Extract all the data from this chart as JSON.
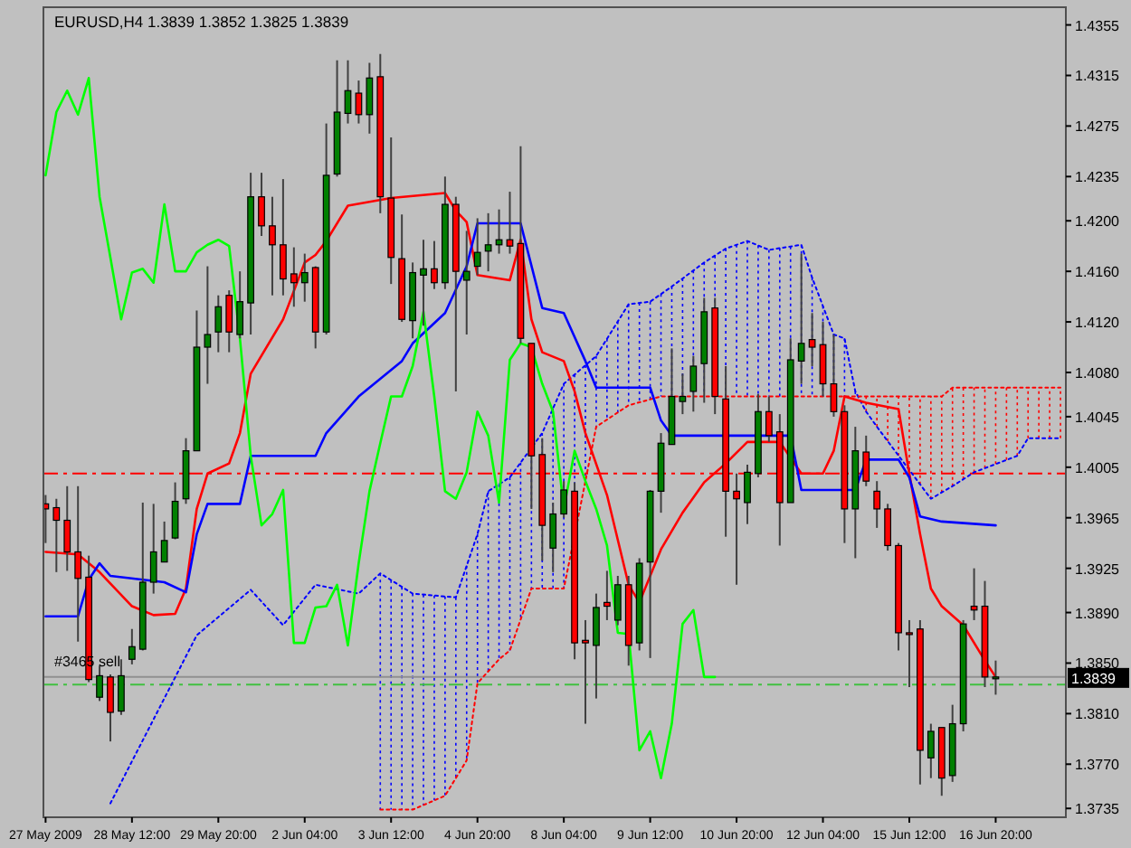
{
  "chart_data": {
    "type": "candlestick",
    "title": "EURUSD,H4  1.3839 1.3852 1.3825 1.3839",
    "categories": [
      "27 May 2009",
      null,
      null,
      null,
      null,
      null,
      null,
      null,
      "28 May 12:00",
      null,
      null,
      null,
      null,
      null,
      null,
      null,
      "29 May 20:00",
      null,
      null,
      null,
      null,
      null,
      null,
      null,
      "2 Jun 04:00",
      null,
      null,
      null,
      null,
      null,
      null,
      null,
      "3 Jun 12:00",
      null,
      null,
      null,
      null,
      null,
      null,
      null,
      "4 Jun 20:00",
      null,
      null,
      null,
      null,
      null,
      null,
      null,
      "8 Jun 04:00",
      null,
      null,
      null,
      null,
      null,
      null,
      null,
      "9 Jun 12:00",
      null,
      null,
      null,
      null,
      null,
      null,
      null,
      "10 Jun 20:00",
      null,
      null,
      null,
      null,
      null,
      null,
      null,
      "12 Jun 04:00",
      null,
      null,
      null,
      null,
      null,
      null,
      null,
      "15 Jun 12:00",
      null,
      null,
      null,
      null,
      null,
      null,
      null,
      "16 Jun 20:00",
      null,
      null,
      null,
      null,
      null,
      null
    ],
    "ohlc": [
      [
        1.3976,
        1.3983,
        1.3945,
        1.3972
      ],
      [
        1.3973,
        1.398,
        1.3922,
        1.3963
      ],
      [
        1.3963,
        1.399,
        1.3923,
        1.3938
      ],
      [
        1.3938,
        1.399,
        1.3867,
        1.3917
      ],
      [
        1.3918,
        1.3935,
        1.3835,
        1.3837
      ],
      [
        1.3823,
        1.3848,
        1.382,
        1.384
      ],
      [
        1.3839,
        1.3841,
        1.3788,
        1.3811
      ],
      [
        1.3812,
        1.3853,
        1.3809,
        1.384
      ],
      [
        1.3853,
        1.3877,
        1.3849,
        1.3863
      ],
      [
        1.3861,
        1.3977,
        1.386,
        1.3914
      ],
      [
        1.3914,
        1.3976,
        1.3905,
        1.3938
      ],
      [
        1.393,
        1.3962,
        1.393,
        1.3947
      ],
      [
        1.3949,
        1.3993,
        1.3948,
        1.3978
      ],
      [
        1.398,
        1.4028,
        1.3976,
        1.4018
      ],
      [
        1.4018,
        1.4129,
        1.4018,
        1.41
      ],
      [
        1.41,
        1.4164,
        1.4071,
        1.411
      ],
      [
        1.4112,
        1.4141,
        1.4096,
        1.4132
      ],
      [
        1.4141,
        1.4145,
        1.4096,
        1.4112
      ],
      [
        1.411,
        1.416,
        1.4107,
        1.4136
      ],
      [
        1.4135,
        1.4238,
        1.411,
        1.4219
      ],
      [
        1.4219,
        1.4238,
        1.4188,
        1.4196
      ],
      [
        1.4196,
        1.4219,
        1.4141,
        1.4181
      ],
      [
        1.4181,
        1.4233,
        1.4141,
        1.4154
      ],
      [
        1.4158,
        1.4179,
        1.4132,
        1.4151
      ],
      [
        1.4151,
        1.4174,
        1.4136,
        1.4159
      ],
      [
        1.4163,
        1.4164,
        1.4099,
        1.4112
      ],
      [
        1.4112,
        1.4277,
        1.411,
        1.4236
      ],
      [
        1.4237,
        1.4327,
        1.4235,
        1.4286
      ],
      [
        1.4285,
        1.4327,
        1.4277,
        1.4303
      ],
      [
        1.4301,
        1.4311,
        1.4277,
        1.4284
      ],
      [
        1.4284,
        1.4325,
        1.4269,
        1.4313
      ],
      [
        1.4314,
        1.4332,
        1.4206,
        1.4219
      ],
      [
        1.4218,
        1.4266,
        1.415,
        1.4171
      ],
      [
        1.417,
        1.4205,
        1.412,
        1.4122
      ],
      [
        1.4121,
        1.4167,
        1.4107,
        1.4159
      ],
      [
        1.4157,
        1.4185,
        1.4117,
        1.4162
      ],
      [
        1.4162,
        1.4184,
        1.4146,
        1.4151
      ],
      [
        1.4151,
        1.4235,
        1.4146,
        1.4213
      ],
      [
        1.4213,
        1.4219,
        1.4065,
        1.416
      ],
      [
        1.4153,
        1.4192,
        1.411,
        1.416
      ],
      [
        1.4164,
        1.4202,
        1.4157,
        1.4175
      ],
      [
        1.4176,
        1.4206,
        1.416,
        1.4181
      ],
      [
        1.4181,
        1.4209,
        1.4174,
        1.4185
      ],
      [
        1.4185,
        1.4223,
        1.4174,
        1.418
      ],
      [
        1.4182,
        1.4259,
        1.4103,
        1.4107
      ],
      [
        1.4103,
        1.4103,
        1.3972,
        1.4014
      ],
      [
        1.4015,
        1.4028,
        1.3931,
        1.3959
      ],
      [
        1.3941,
        1.3977,
        1.3922,
        1.3968
      ],
      [
        1.3968,
        1.3994,
        1.3965,
        1.3987
      ],
      [
        1.3986,
        1.3993,
        1.3853,
        1.3866
      ],
      [
        1.3868,
        1.3884,
        1.3802,
        1.3866
      ],
      [
        1.3864,
        1.3905,
        1.3822,
        1.3894
      ],
      [
        1.3898,
        1.3923,
        1.3884,
        1.3895
      ],
      [
        1.3884,
        1.3919,
        1.388,
        1.3912
      ],
      [
        1.3912,
        1.3919,
        1.3848,
        1.3864
      ],
      [
        1.3866,
        1.3933,
        1.386,
        1.3929
      ],
      [
        1.393,
        1.3987,
        1.3854,
        1.3986
      ],
      [
        1.3986,
        1.4032,
        1.3969,
        1.4024
      ],
      [
        1.4023,
        1.4099,
        1.4023,
        1.4061
      ],
      [
        1.4057,
        1.4079,
        1.4047,
        1.4061
      ],
      [
        1.4065,
        1.4093,
        1.4049,
        1.4085
      ],
      [
        1.4087,
        1.4139,
        1.4056,
        1.4128
      ],
      [
        1.4131,
        1.4139,
        1.4047,
        1.4061
      ],
      [
        1.4059,
        1.4085,
        1.395,
        1.3986
      ],
      [
        1.3986,
        1.4,
        1.3912,
        1.398
      ],
      [
        1.3977,
        1.4007,
        1.396,
        1.4001
      ],
      [
        1.4,
        1.4063,
        1.3997,
        1.4049
      ],
      [
        1.4049,
        1.4061,
        1.4025,
        1.403
      ],
      [
        1.4033,
        1.4047,
        1.3943,
        1.3977
      ],
      [
        1.3977,
        1.4107,
        1.3977,
        1.409
      ],
      [
        1.4089,
        1.4174,
        1.4071,
        1.4103
      ],
      [
        1.4106,
        1.4127,
        1.4085,
        1.41
      ],
      [
        1.4102,
        1.412,
        1.4061,
        1.4071
      ],
      [
        1.4071,
        1.411,
        1.4045,
        1.4049
      ],
      [
        1.4049,
        1.4054,
        1.3945,
        1.3972
      ],
      [
        1.3972,
        1.4037,
        1.3933,
        1.4018
      ],
      [
        1.4017,
        1.403,
        1.399,
        1.3994
      ],
      [
        1.3986,
        1.3994,
        1.3957,
        1.3972
      ],
      [
        1.3972,
        1.3976,
        1.3939,
        1.3943
      ],
      [
        1.3943,
        1.3945,
        1.386,
        1.3874
      ],
      [
        1.3874,
        1.3884,
        1.3831,
        1.3873
      ],
      [
        1.3877,
        1.3884,
        1.3754,
        1.3781
      ],
      [
        1.3775,
        1.3802,
        1.3759,
        1.3796
      ],
      [
        1.3799,
        1.3799,
        1.3745,
        1.3759
      ],
      [
        1.3761,
        1.3817,
        1.3756,
        1.3802
      ],
      [
        1.3802,
        1.3884,
        1.3796,
        1.3881
      ],
      [
        1.3895,
        1.3925,
        1.3884,
        1.3892
      ],
      [
        1.3895,
        1.3915,
        1.3831,
        1.3839
      ],
      [
        1.3839,
        1.3852,
        1.3825,
        1.3839
      ],
      null,
      null,
      null,
      null,
      null,
      null
    ],
    "colors": [
      "#ff0000",
      "#ff0000",
      "#ff0000",
      "#ff0000",
      "#ff0000",
      "#008000",
      "#ff0000",
      "#008000",
      "#008000",
      "#008000",
      "#008000",
      "#008000",
      "#008000",
      "#008000",
      "#008000",
      "#008000",
      "#008000",
      "#ff0000",
      "#008000",
      "#008000",
      "#ff0000",
      "#ff0000",
      "#ff0000",
      "#ff0000",
      "#008000",
      "#ff0000",
      "#008000",
      "#008000",
      "#008000",
      "#ff0000",
      "#008000",
      "#ff0000",
      "#ff0000",
      "#ff0000",
      "#008000",
      "#008000",
      "#ff0000",
      "#008000",
      "#ff0000",
      "#008000",
      "#008000",
      "#008000",
      "#008000",
      "#ff0000",
      "#ff0000",
      "#ff0000",
      "#ff0000",
      "#008000",
      "#008000",
      "#ff0000",
      "#ff0000",
      "#008000",
      "#ff0000",
      "#008000",
      "#ff0000",
      "#008000",
      "#008000",
      "#008000",
      "#008000",
      "#008000",
      "#008000",
      "#008000",
      "#ff0000",
      "#ff0000",
      "#ff0000",
      "#008000",
      "#008000",
      "#ff0000",
      "#ff0000",
      "#008000",
      "#008000",
      "#ff0000",
      "#ff0000",
      "#ff0000",
      "#ff0000",
      "#008000",
      "#ff0000",
      "#ff0000",
      "#ff0000",
      "#ff0000",
      "#ff0000",
      "#ff0000",
      "#008000",
      "#ff0000",
      "#008000",
      "#008000",
      "#ff0000",
      "#ff0000",
      "#008000",
      null,
      null,
      null,
      null,
      null,
      null
    ],
    "series": [
      {
        "type": "line",
        "color": "#0000ff",
        "line_style": "dotted",
        "values": [
          null,
          null,
          null,
          null,
          null,
          null,
          1.3739,
          null,
          null,
          null,
          null,
          null,
          null,
          null,
          1.3872,
          null,
          null,
          null,
          null,
          1.3908,
          null,
          null,
          1.388,
          null,
          null,
          1.3912,
          null,
          null,
          null,
          1.3905,
          null,
          1.3921,
          null,
          null,
          1.3905,
          null,
          null,
          null,
          1.3902,
          null,
          1.3952,
          1.3986,
          null,
          1.3997,
          null,
          null,
          1.4032,
          null,
          1.4071,
          null,
          null,
          1.4093,
          null,
          null,
          1.4134,
          null,
          1.4136,
          null,
          1.4148,
          null,
          null,
          1.4167,
          null,
          1.4178,
          null,
          1.4184,
          null,
          1.4177,
          null,
          null,
          1.4181,
          1.4155,
          null,
          1.411,
          1.4107,
          1.4065,
          1.4049,
          1.4037,
          null,
          null,
          null,
          null,
          1.398,
          null,
          1.399,
          null,
          1.4001,
          null,
          null,
          null,
          1.4014,
          1.4028,
          null,
          null,
          1.4028
        ]
      },
      {
        "type": "line",
        "color": "#ff0000",
        "line_style": "dotted",
        "values": [
          null,
          null,
          null,
          null,
          null,
          null,
          null,
          null,
          null,
          null,
          null,
          null,
          null,
          null,
          null,
          null,
          null,
          null,
          null,
          null,
          null,
          null,
          null,
          null,
          null,
          null,
          null,
          null,
          null,
          null,
          null,
          1.3734,
          null,
          null,
          1.3734,
          null,
          null,
          1.3745,
          null,
          1.3773,
          1.3834,
          null,
          1.3853,
          1.386,
          null,
          1.3909,
          null,
          null,
          1.3909,
          1.3951,
          null,
          1.4037,
          null,
          null,
          1.4054,
          null,
          null,
          1.4061,
          null,
          null,
          null,
          null,
          null,
          null,
          null,
          null,
          null,
          null,
          null,
          null,
          null,
          null,
          null,
          null,
          null,
          null,
          null,
          null,
          null,
          null,
          null,
          null,
          null,
          1.4061,
          1.4068,
          null,
          null,
          null,
          null,
          null,
          null,
          null,
          null,
          null,
          1.4068
        ]
      },
      {
        "type": "line",
        "color": "#ff0000",
        "line_style": "solid",
        "values": [
          1.3938,
          null,
          null,
          1.3936,
          null,
          1.3922,
          null,
          null,
          1.3895,
          null,
          1.3888,
          null,
          1.3889,
          1.3909,
          1.3972,
          1.4,
          null,
          1.4008,
          1.4032,
          1.4079,
          null,
          null,
          1.4122,
          null,
          1.4167,
          1.4173,
          1.4184,
          null,
          1.4212,
          null,
          null,
          null,
          1.4218,
          null,
          null,
          null,
          null,
          1.4222,
          1.4208,
          1.4199,
          1.4157,
          null,
          null,
          1.4153,
          1.4185,
          1.4122,
          1.4096,
          null,
          1.4089,
          1.4065,
          1.4032,
          null,
          1.3983,
          null,
          1.3912,
          1.3898,
          null,
          1.394,
          null,
          1.3969,
          null,
          1.3993,
          null,
          1.4008,
          null,
          1.4025,
          null,
          null,
          1.4025,
          null,
          1.4,
          null,
          1.4,
          1.4018,
          1.4061,
          null,
          1.4056,
          null,
          null,
          1.4051,
          1.4,
          1.3952,
          1.3909,
          1.3895,
          null,
          1.388,
          null,
          1.3852,
          1.3839,
          null,
          null,
          null,
          null,
          null,
          null
        ]
      },
      {
        "type": "line",
        "color": "#0000ff",
        "line_style": "solid",
        "values": [
          1.3887,
          null,
          null,
          1.3887,
          1.3916,
          1.3929,
          1.3919,
          null,
          null,
          null,
          null,
          1.3914,
          null,
          1.3906,
          1.3952,
          1.3976,
          null,
          null,
          1.3976,
          1.4014,
          null,
          null,
          null,
          null,
          null,
          1.4014,
          1.4032,
          null,
          null,
          1.4061,
          null,
          null,
          null,
          1.4089,
          1.4103,
          null,
          null,
          1.4127,
          null,
          1.4164,
          1.4198,
          null,
          null,
          null,
          1.4198,
          null,
          1.4131,
          null,
          1.4127,
          null,
          1.4089,
          1.4068,
          null,
          null,
          null,
          null,
          1.4068,
          1.4042,
          1.403,
          null,
          null,
          null,
          null,
          null,
          null,
          null,
          null,
          null,
          null,
          1.403,
          1.3987,
          null,
          null,
          null,
          null,
          1.3987,
          1.4011,
          null,
          null,
          1.4011,
          1.3997,
          1.3966,
          null,
          1.3962,
          null,
          null,
          null,
          null,
          1.3959,
          null,
          null,
          null,
          null,
          null,
          null
        ]
      },
      {
        "type": "line",
        "color": "#00ff00",
        "line_style": "solid",
        "values": [
          1.4236,
          1.4286,
          1.4303,
          1.4284,
          1.4313,
          1.4219,
          1.4171,
          1.4122,
          1.4159,
          1.4162,
          1.4151,
          1.4213,
          1.416,
          1.416,
          1.4175,
          1.4181,
          1.4185,
          1.418,
          1.4107,
          1.4014,
          1.3959,
          1.3968,
          1.3987,
          1.3866,
          1.3866,
          1.3894,
          1.3895,
          1.3912,
          1.3864,
          1.3929,
          1.3986,
          1.4024,
          1.4061,
          1.4061,
          1.4085,
          1.4128,
          1.4061,
          1.3986,
          1.398,
          1.4001,
          1.4049,
          1.403,
          1.3977,
          1.409,
          1.4103,
          1.41,
          1.4071,
          1.4049,
          1.3972,
          1.4018,
          1.3994,
          1.3972,
          1.3943,
          1.3874,
          1.3873,
          1.3781,
          1.3796,
          1.3759,
          1.3802,
          1.3881,
          1.3892,
          1.3839,
          1.3839,
          null,
          null,
          null,
          null,
          null,
          null,
          null,
          null,
          null,
          null,
          null,
          null,
          null,
          null,
          null,
          null,
          null,
          null,
          null,
          null,
          null,
          null,
          null,
          null,
          null,
          null,
          null,
          null,
          null,
          null,
          null,
          null
        ]
      }
    ],
    "ref_lines": [
      {
        "axis": "y",
        "value": 1.4,
        "color": "#ff0000",
        "line_style": "dashed"
      },
      {
        "axis": "y",
        "value": 1.3833,
        "color": "#40c040",
        "line_style": "dashed",
        "label": "#3465 sell"
      },
      {
        "axis": "y",
        "value": 1.3839,
        "color": "#909090",
        "line_style": "solid",
        "label": "1.3839"
      }
    ],
    "ylim": [
      1.3728,
      1.4369
    ],
    "yticks": [
      1.4355,
      1.4315,
      1.4275,
      1.4235,
      {
        "value": 1.42,
        "label": "1.4200"
      },
      {
        "value": 1.416,
        "label": "1.4160"
      },
      {
        "value": 1.412,
        "label": "1.4120"
      },
      {
        "value": 1.408,
        "label": "1.4080"
      },
      1.4045,
      1.4005,
      1.3965,
      1.3925,
      {
        "value": 1.389,
        "label": "1.3890"
      },
      {
        "value": 1.385,
        "label": "1.3850"
      },
      {
        "value": 1.381,
        "label": "1.3810"
      },
      {
        "value": 1.377,
        "label": "1.3770"
      },
      1.3735
    ],
    "grid": false
  }
}
